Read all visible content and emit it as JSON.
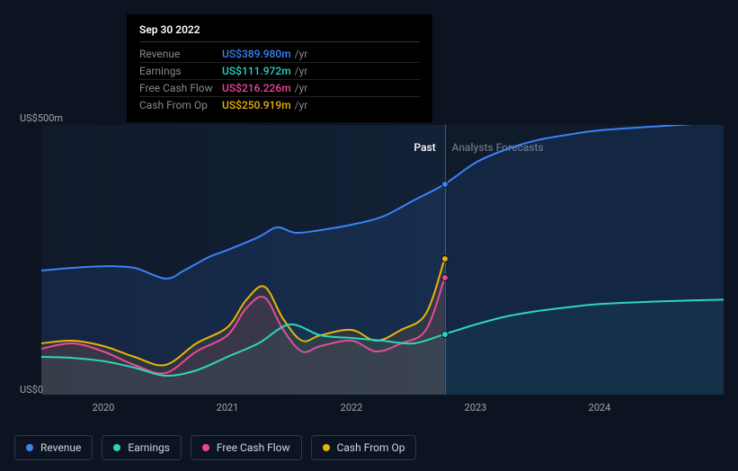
{
  "tooltip": {
    "date": "Sep 30 2022",
    "rows": [
      {
        "label": "Revenue",
        "value": "US$389.980m",
        "unit": "/yr",
        "color": "#3b82f6"
      },
      {
        "label": "Earnings",
        "value": "US$111.972m",
        "unit": "/yr",
        "color": "#2dd4bf"
      },
      {
        "label": "Free Cash Flow",
        "value": "US$216.226m",
        "unit": "/yr",
        "color": "#ec4899"
      },
      {
        "label": "Cash From Op",
        "value": "US$250.919m",
        "unit": "/yr",
        "color": "#eab308"
      }
    ]
  },
  "chart": {
    "background": "#0d1421",
    "ylabels": {
      "top": "US$500m",
      "bottom": "US$0"
    },
    "region_labels": {
      "past": "Past",
      "forecast": "Analysts Forecasts"
    },
    "x_range": [
      2019.5,
      2025.0
    ],
    "divider_x": 2022.75,
    "xticks": [
      "2020",
      "2021",
      "2022",
      "2023",
      "2024"
    ],
    "y_range": [
      0,
      500
    ],
    "series": [
      {
        "name": "Revenue",
        "color": "#3b82f6",
        "fill": "rgba(59,130,246,0.12)",
        "points": [
          [
            2019.5,
            230
          ],
          [
            2019.75,
            235
          ],
          [
            2020.0,
            238
          ],
          [
            2020.25,
            235
          ],
          [
            2020.5,
            215
          ],
          [
            2020.65,
            230
          ],
          [
            2020.85,
            255
          ],
          [
            2021.0,
            268
          ],
          [
            2021.25,
            292
          ],
          [
            2021.4,
            310
          ],
          [
            2021.55,
            300
          ],
          [
            2021.75,
            305
          ],
          [
            2022.0,
            315
          ],
          [
            2022.25,
            330
          ],
          [
            2022.5,
            360
          ],
          [
            2022.75,
            390
          ],
          [
            2023.0,
            430
          ],
          [
            2023.25,
            455
          ],
          [
            2023.5,
            472
          ],
          [
            2023.75,
            482
          ],
          [
            2024.0,
            490
          ],
          [
            2024.5,
            498
          ],
          [
            2025.0,
            505
          ]
        ]
      },
      {
        "name": "Cash From Op",
        "color": "#eab308",
        "fill": "rgba(234,179,8,0.10)",
        "points": [
          [
            2019.5,
            95
          ],
          [
            2019.75,
            100
          ],
          [
            2020.0,
            90
          ],
          [
            2020.25,
            70
          ],
          [
            2020.5,
            55
          ],
          [
            2020.75,
            95
          ],
          [
            2021.0,
            125
          ],
          [
            2021.15,
            175
          ],
          [
            2021.3,
            200
          ],
          [
            2021.45,
            140
          ],
          [
            2021.6,
            100
          ],
          [
            2021.75,
            110
          ],
          [
            2022.0,
            120
          ],
          [
            2022.2,
            100
          ],
          [
            2022.4,
            120
          ],
          [
            2022.6,
            150
          ],
          [
            2022.75,
            251
          ]
        ]
      },
      {
        "name": "Free Cash Flow",
        "color": "#ec4899",
        "fill": "rgba(236,72,153,0.08)",
        "points": [
          [
            2019.5,
            85
          ],
          [
            2019.75,
            95
          ],
          [
            2020.0,
            80
          ],
          [
            2020.25,
            55
          ],
          [
            2020.5,
            40
          ],
          [
            2020.75,
            80
          ],
          [
            2021.0,
            110
          ],
          [
            2021.15,
            160
          ],
          [
            2021.3,
            180
          ],
          [
            2021.45,
            120
          ],
          [
            2021.6,
            80
          ],
          [
            2021.75,
            90
          ],
          [
            2022.0,
            100
          ],
          [
            2022.2,
            80
          ],
          [
            2022.4,
            95
          ],
          [
            2022.6,
            120
          ],
          [
            2022.75,
            216
          ]
        ]
      },
      {
        "name": "Earnings",
        "color": "#2dd4bf",
        "fill": "rgba(45,212,191,0.06)",
        "points": [
          [
            2019.5,
            70
          ],
          [
            2019.75,
            68
          ],
          [
            2020.0,
            62
          ],
          [
            2020.25,
            50
          ],
          [
            2020.5,
            35
          ],
          [
            2020.75,
            45
          ],
          [
            2021.0,
            70
          ],
          [
            2021.25,
            95
          ],
          [
            2021.5,
            130
          ],
          [
            2021.75,
            110
          ],
          [
            2022.0,
            105
          ],
          [
            2022.25,
            100
          ],
          [
            2022.5,
            95
          ],
          [
            2022.75,
            112
          ],
          [
            2023.0,
            130
          ],
          [
            2023.25,
            145
          ],
          [
            2023.5,
            155
          ],
          [
            2023.75,
            162
          ],
          [
            2024.0,
            168
          ],
          [
            2024.5,
            173
          ],
          [
            2025.0,
            176
          ]
        ]
      }
    ],
    "markers": [
      {
        "x": 2022.75,
        "y": 390,
        "color": "#3b82f6"
      },
      {
        "x": 2022.75,
        "y": 251,
        "color": "#eab308"
      },
      {
        "x": 2022.75,
        "y": 216,
        "color": "#ec4899"
      },
      {
        "x": 2022.75,
        "y": 112,
        "color": "#2dd4bf"
      }
    ]
  },
  "legend": [
    {
      "label": "Revenue",
      "color": "#3b82f6"
    },
    {
      "label": "Earnings",
      "color": "#2dd4bf"
    },
    {
      "label": "Free Cash Flow",
      "color": "#ec4899"
    },
    {
      "label": "Cash From Op",
      "color": "#eab308"
    }
  ]
}
